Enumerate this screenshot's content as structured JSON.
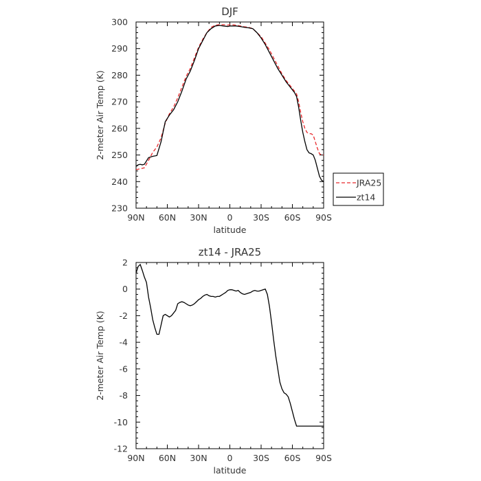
{
  "chart_data": [
    {
      "type": "line",
      "title": "DJF",
      "xlabel": "latitude",
      "ylabel": "2-meter Air Temp (K)",
      "xlim": [
        90,
        -90
      ],
      "ylim": [
        230,
        300
      ],
      "xticks": [
        {
          "value": 90,
          "label": "90N"
        },
        {
          "value": 60,
          "label": "60N"
        },
        {
          "value": 30,
          "label": "30N"
        },
        {
          "value": 0,
          "label": "0"
        },
        {
          "value": -30,
          "label": "30S"
        },
        {
          "value": -60,
          "label": "60S"
        },
        {
          "value": -90,
          "label": "90S"
        }
      ],
      "yticks": [
        230,
        240,
        250,
        260,
        270,
        280,
        290,
        300
      ],
      "grid": false,
      "legend": "outside-right",
      "series": [
        {
          "name": "JRA25",
          "color": "#e8282b",
          "dash": "dashed",
          "x": [
            90,
            86,
            82,
            78,
            74,
            70,
            66,
            62,
            58,
            54,
            50,
            46,
            42,
            38,
            34,
            30,
            26,
            22,
            18,
            14,
            10,
            6,
            2,
            0,
            -2,
            -6,
            -10,
            -14,
            -18,
            -22,
            -26,
            -30,
            -34,
            -38,
            -42,
            -46,
            -50,
            -54,
            -58,
            -62,
            -64,
            -66,
            -68,
            -70,
            -72,
            -74,
            -76,
            -78,
            -80,
            -82,
            -84,
            -86,
            -88,
            -90
          ],
          "y": [
            244.5,
            244.8,
            245.2,
            248.0,
            251.0,
            253.0,
            256.5,
            262.0,
            265.5,
            268.0,
            271.5,
            275.5,
            279.5,
            282.5,
            286.5,
            290.5,
            293.5,
            296.0,
            298.0,
            298.8,
            299.0,
            299.0,
            298.8,
            299.0,
            299.0,
            298.8,
            298.5,
            298.2,
            298.0,
            297.5,
            296.0,
            294.5,
            292.0,
            289.5,
            286.5,
            283.5,
            280.5,
            278.0,
            276.0,
            274.0,
            273.0,
            270.0,
            266.0,
            262.5,
            260.0,
            258.5,
            258.0,
            258.0,
            257.5,
            255.0,
            252.5,
            250.5,
            250.0,
            250.0
          ]
        },
        {
          "name": "zt14",
          "color": "#000000",
          "dash": "solid",
          "x": [
            90,
            88,
            86,
            84,
            82,
            78,
            74,
            70,
            66,
            62,
            58,
            54,
            50,
            46,
            42,
            38,
            34,
            30,
            26,
            22,
            18,
            14,
            10,
            6,
            2,
            0,
            -2,
            -6,
            -10,
            -14,
            -18,
            -22,
            -26,
            -30,
            -34,
            -38,
            -42,
            -46,
            -50,
            -54,
            -58,
            -62,
            -64,
            -66,
            -68,
            -70,
            -72,
            -74,
            -76,
            -78,
            -80,
            -82,
            -84,
            -86,
            -88,
            -90
          ],
          "y": [
            245.7,
            246.3,
            246.5,
            246.3,
            246.5,
            249.0,
            249.5,
            249.8,
            255.0,
            262.5,
            265.0,
            267.0,
            270.0,
            274.0,
            278.5,
            281.5,
            285.5,
            290.0,
            293.0,
            296.0,
            297.5,
            298.5,
            298.7,
            298.5,
            298.3,
            298.5,
            298.5,
            298.5,
            298.3,
            298.0,
            297.8,
            297.5,
            296.0,
            294.0,
            291.5,
            288.5,
            285.5,
            282.5,
            280.0,
            277.5,
            275.5,
            273.5,
            272.0,
            268.0,
            263.0,
            258.5,
            255.0,
            252.0,
            250.8,
            250.5,
            250.0,
            248.0,
            245.0,
            242.0,
            240.5,
            240.0
          ]
        }
      ]
    },
    {
      "type": "line",
      "title": "zt14 - JRA25",
      "xlabel": "latitude",
      "ylabel": "2-meter Air Temp (K)",
      "xlim": [
        90,
        -90
      ],
      "ylim": [
        -12,
        2
      ],
      "xticks": [
        {
          "value": 90,
          "label": "90N"
        },
        {
          "value": 60,
          "label": "60N"
        },
        {
          "value": 30,
          "label": "30N"
        },
        {
          "value": 0,
          "label": "0"
        },
        {
          "value": -30,
          "label": "30S"
        },
        {
          "value": -60,
          "label": "60S"
        },
        {
          "value": -90,
          "label": "90S"
        }
      ],
      "yticks": [
        -12,
        -10,
        -8,
        -6,
        -4,
        -2,
        0,
        2
      ],
      "grid": false,
      "series": [
        {
          "color": "#000000",
          "dash": "solid",
          "x": [
            90,
            88,
            86,
            84,
            82,
            80,
            78,
            76,
            74,
            72,
            70,
            68,
            66,
            64,
            62,
            60,
            58,
            56,
            54,
            52,
            50,
            48,
            46,
            44,
            42,
            40,
            38,
            36,
            34,
            32,
            30,
            28,
            26,
            24,
            22,
            20,
            18,
            16,
            14,
            12,
            10,
            8,
            6,
            4,
            2,
            0,
            -2,
            -4,
            -6,
            -8,
            -10,
            -12,
            -14,
            -16,
            -18,
            -20,
            -22,
            -24,
            -26,
            -28,
            -30,
            -32,
            -34,
            -36,
            -38,
            -40,
            -42,
            -44,
            -46,
            -48,
            -50,
            -52,
            -54,
            -56,
            -58,
            -60,
            -62,
            -64,
            -66,
            -68,
            -70,
            -72,
            -74,
            -76,
            -78,
            -80,
            -82,
            -84,
            -86,
            -88,
            -90
          ],
          "y": [
            1.2,
            1.7,
            1.85,
            1.4,
            0.9,
            0.5,
            -0.6,
            -1.4,
            -2.3,
            -2.9,
            -3.4,
            -3.4,
            -2.7,
            -2.0,
            -1.9,
            -2.0,
            -2.1,
            -2.0,
            -1.8,
            -1.6,
            -1.1,
            -1.0,
            -0.95,
            -1.0,
            -1.1,
            -1.2,
            -1.25,
            -1.2,
            -1.1,
            -0.95,
            -0.8,
            -0.7,
            -0.55,
            -0.45,
            -0.4,
            -0.5,
            -0.55,
            -0.55,
            -0.6,
            -0.55,
            -0.55,
            -0.45,
            -0.35,
            -0.25,
            -0.1,
            -0.05,
            -0.05,
            -0.1,
            -0.15,
            -0.1,
            -0.25,
            -0.35,
            -0.4,
            -0.35,
            -0.3,
            -0.25,
            -0.15,
            -0.1,
            -0.15,
            -0.15,
            -0.1,
            -0.05,
            0.0,
            -0.4,
            -1.3,
            -2.5,
            -3.8,
            -5.0,
            -6.0,
            -7.0,
            -7.5,
            -7.8,
            -7.9,
            -8.1,
            -8.6,
            -9.2,
            -9.8,
            -10.3,
            -10.3,
            -10.3,
            -10.3,
            -10.3,
            -10.3,
            -10.3,
            -10.3,
            -10.3,
            -10.3,
            -10.3,
            -10.3,
            -10.3,
            -10.3
          ]
        }
      ]
    }
  ]
}
